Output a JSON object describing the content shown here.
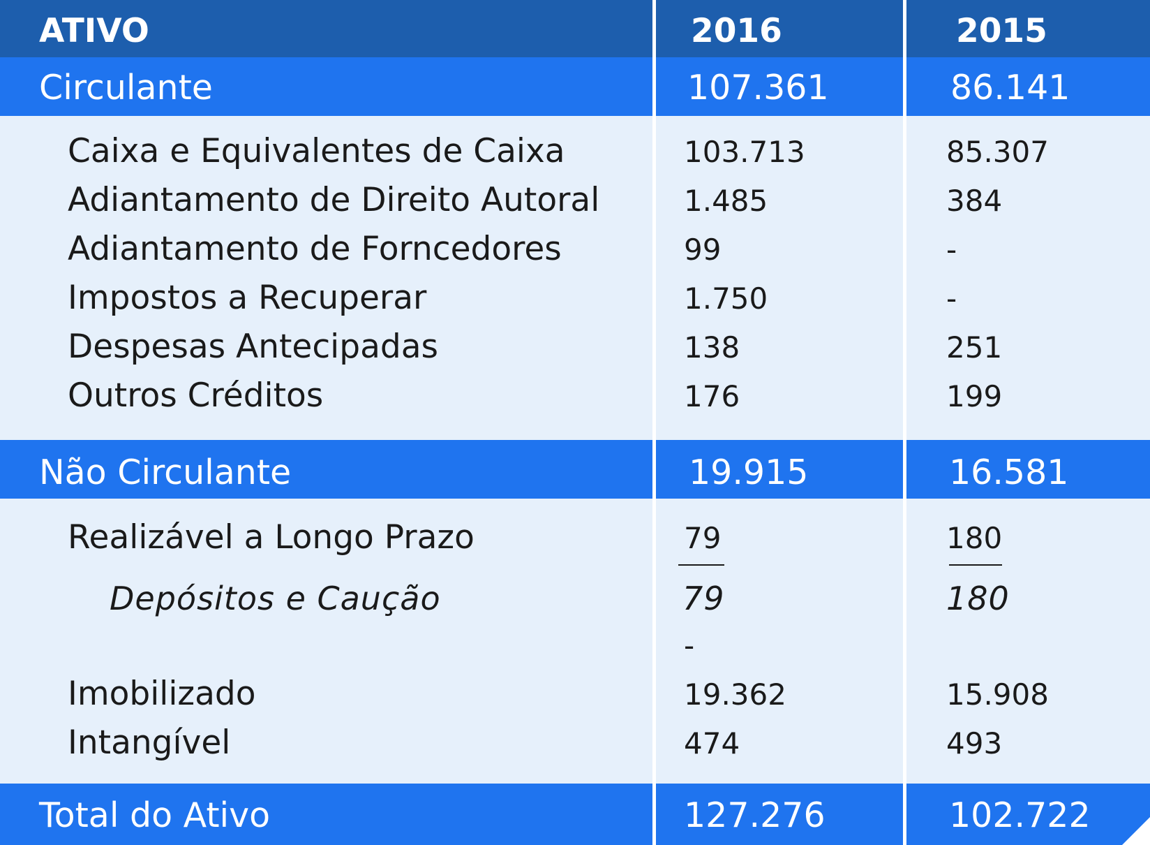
{
  "header": {
    "label": "ATIVO",
    "col_2016": "2016",
    "col_2015": "2015"
  },
  "circulante": {
    "label": "Circulante",
    "v2016": "107.361",
    "v2015": "86.141",
    "rows": [
      {
        "label": "Caixa e Equivalentes de Caixa",
        "v2016": "103.713",
        "v2015": "85.307"
      },
      {
        "label": "Adiantamento de Direito Autoral",
        "v2016": "1.485",
        "v2015": "384"
      },
      {
        "label": "Adiantamento de Forncedores",
        "v2016": "99",
        "v2015": "-"
      },
      {
        "label": "Impostos a Recuperar",
        "v2016": "1.750",
        "v2015": "-"
      },
      {
        "label": "Despesas Antecipadas",
        "v2016": "138",
        "v2015": "251"
      },
      {
        "label": "Outros Créditos",
        "v2016": "176",
        "v2015": "199"
      }
    ]
  },
  "nao_circulante": {
    "label": "Não Circulante",
    "v2016": "19.915",
    "v2015": "16.581",
    "realizavel": {
      "label": "Realizável a Longo Prazo",
      "v2016": "79",
      "v2015": "180"
    },
    "depositos": {
      "label": "Depósitos e Caução",
      "v2016": "79",
      "v2015": "180"
    },
    "dash_2016": "-",
    "imobilizado": {
      "label": "Imobilizado",
      "v2016": "19.362",
      "v2015": "15.908"
    },
    "intangivel": {
      "label": "Intangível",
      "v2016": "474",
      "v2015": "493"
    }
  },
  "total": {
    "label": "Total do Ativo",
    "v2016": "127.276",
    "v2015": "102.722"
  },
  "colors": {
    "header": "#1d5ead",
    "section": "#1f74ef",
    "body": "#e6f0fb"
  }
}
